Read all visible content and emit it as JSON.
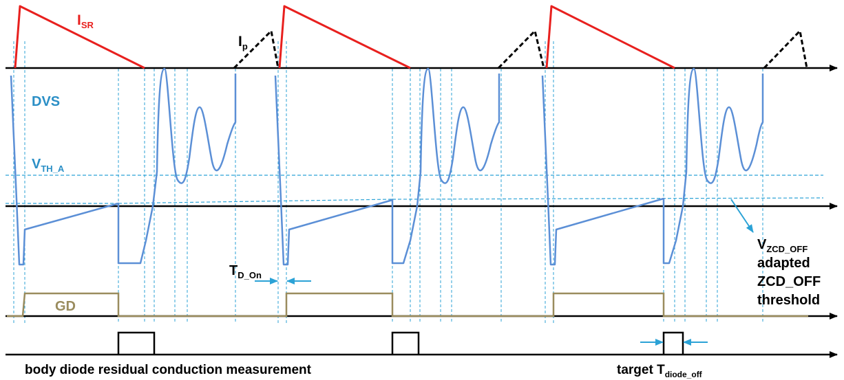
{
  "labels": {
    "isr": {
      "main": "I",
      "sub": "SR"
    },
    "ip": {
      "main": "I",
      "sub": "p"
    },
    "dvs": "DVS",
    "vth": {
      "main": "V",
      "sub": "TH_A"
    },
    "tdon": {
      "main": "T",
      "sub": "D_On"
    },
    "gd": "GD",
    "vzcd": {
      "main": "V",
      "sub": "ZCD_OFF"
    },
    "vzcd_desc": [
      "adapted",
      "ZCD_OFF",
      "threshold"
    ],
    "body_diode": "body diode residual conduction measurement",
    "target": {
      "main": "target T",
      "sub": "diode_off"
    }
  },
  "colors": {
    "isr": "#e8201e",
    "ip": "#000000",
    "dvs": "#5b8fd6",
    "guide": "#2ba2d6",
    "gd": "#9a8c5e",
    "axis": "#000000",
    "label_blue": "#2b8fc6"
  }
}
